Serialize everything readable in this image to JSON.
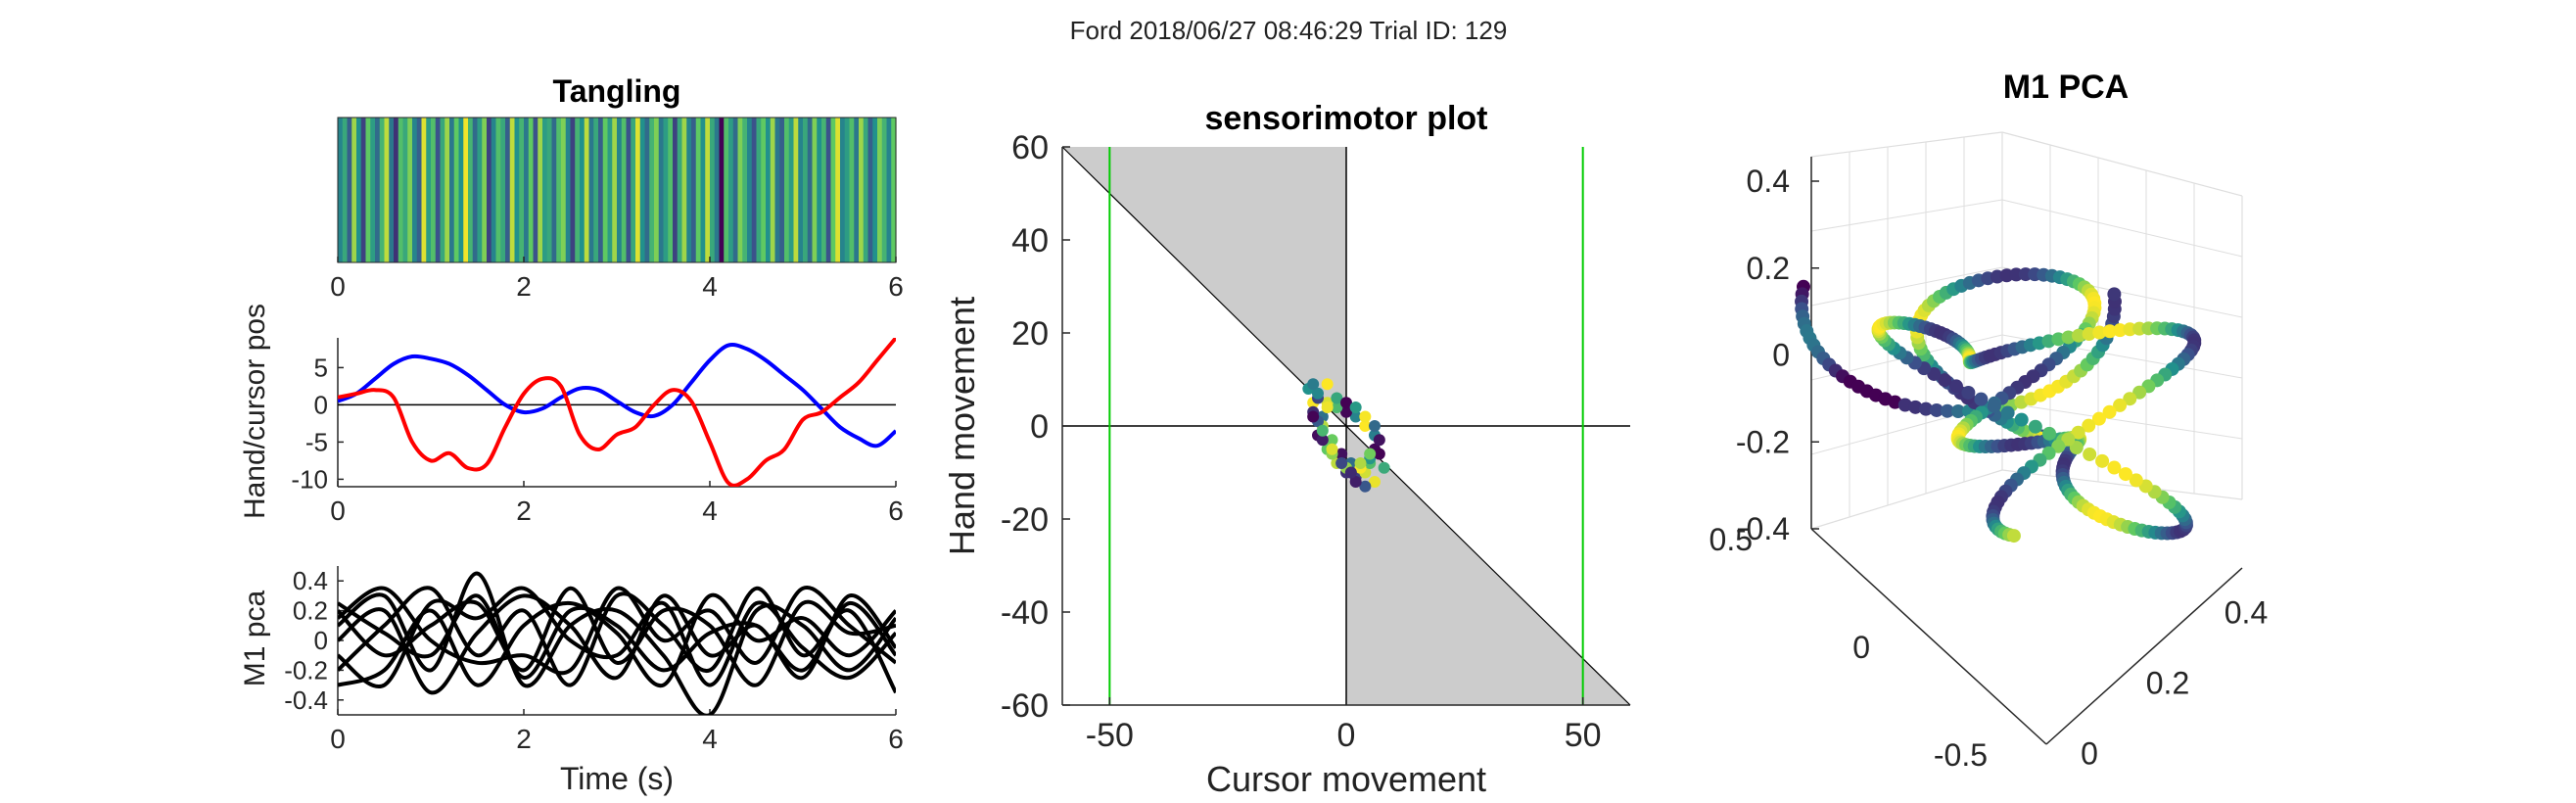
{
  "figure": {
    "suptitle": "Ford 2018/06/27 08:46:29 Trial ID: 129",
    "colors": {
      "hand": "#0000ff",
      "cursor": "#ff0000",
      "pca_lines": "#000000",
      "boundary": "#00cc00",
      "shade": "#cccccc",
      "viridis": [
        "#440154",
        "#3b528b",
        "#21918c",
        "#5ec962",
        "#fde725"
      ]
    }
  },
  "chart_data": [
    {
      "id": "tangling",
      "type": "heatmap",
      "title": "Tangling",
      "xlabel": "",
      "ylabel": "",
      "xlim": [
        0,
        6
      ],
      "xticks": [
        0,
        2,
        4,
        6
      ],
      "colormap": "viridis",
      "values": [
        0.45,
        0.6,
        0.3,
        0.85,
        0.5,
        0.2,
        0.75,
        0.55,
        0.35,
        0.65,
        0.9,
        0.4,
        0.15,
        0.7,
        0.6,
        0.8,
        0.45,
        0.3,
        0.95,
        0.55,
        0.7,
        0.25,
        0.6,
        0.85,
        0.4,
        0.75,
        0.5,
        0.98,
        0.65,
        0.35,
        0.55,
        0.8,
        0.2,
        0.45,
        0.7,
        0.6,
        0.3,
        0.9,
        0.5,
        0.65,
        0.4,
        0.75,
        0.25,
        0.85,
        0.55,
        0.6,
        0.35,
        0.7,
        0.8,
        0.45,
        0.2,
        0.65,
        0.5,
        0.9,
        0.4,
        0.6,
        0.3,
        0.75,
        0.55,
        0.85,
        0.45,
        0.7,
        0.25,
        0.6,
        0.95,
        0.5,
        0.35,
        0.65,
        0.8,
        0.4,
        0.55,
        0.7,
        0.2,
        0.6,
        0.85,
        0.45,
        0.3,
        0.75,
        0.5,
        0.9,
        0.6,
        0.4,
        0.0,
        0.7,
        0.55,
        0.35,
        0.8,
        0.65,
        0.45,
        0.25,
        0.6,
        0.75,
        0.5,
        0.85,
        0.4,
        0.3,
        0.7,
        0.55,
        0.9,
        0.45,
        0.6,
        0.35,
        0.8,
        0.5,
        0.65,
        0.25,
        0.75,
        0.95,
        0.45,
        0.55,
        0.7,
        0.4,
        0.85,
        0.6,
        0.3,
        0.5,
        0.8,
        0.65,
        0.45,
        0.75
      ]
    },
    {
      "id": "handcursor",
      "type": "line",
      "title": "",
      "xlabel": "",
      "ylabel": "Hand/cursor pos",
      "xlim": [
        0,
        6
      ],
      "ylim": [
        -11,
        9
      ],
      "xticks": [
        0,
        2,
        4,
        6
      ],
      "yticks": [
        -10,
        -5,
        0,
        5
      ],
      "series": [
        {
          "color": "blue",
          "x": [
            0,
            0.2,
            0.4,
            0.6,
            0.8,
            1.0,
            1.2,
            1.4,
            1.6,
            1.8,
            2.0,
            2.2,
            2.4,
            2.6,
            2.8,
            3.0,
            3.2,
            3.4,
            3.6,
            3.8,
            4.0,
            4.2,
            4.4,
            4.6,
            4.8,
            5.0,
            5.2,
            5.4,
            5.6,
            5.8,
            6.0
          ],
          "y": [
            0.5,
            1.5,
            3.5,
            5.5,
            6.5,
            6.2,
            5.5,
            4,
            2,
            0,
            -1,
            -0.5,
            1,
            2.2,
            2,
            0.5,
            -1,
            -1.5,
            0,
            3,
            6,
            8,
            7.5,
            6,
            4,
            2,
            -0.5,
            -3,
            -4.5,
            -5.5,
            -3.5
          ]
        },
        {
          "color": "red",
          "x": [
            0,
            0.2,
            0.4,
            0.6,
            0.8,
            1.0,
            1.2,
            1.4,
            1.6,
            1.8,
            2.0,
            2.2,
            2.4,
            2.6,
            2.8,
            3.0,
            3.2,
            3.4,
            3.6,
            3.8,
            4.0,
            4.2,
            4.4,
            4.6,
            4.8,
            5.0,
            5.2,
            5.4,
            5.6,
            5.8,
            6.0
          ],
          "y": [
            1,
            1.5,
            2,
            1,
            -5,
            -7.5,
            -6.5,
            -8.5,
            -8,
            -3,
            1.5,
            3.5,
            2.5,
            -4,
            -6,
            -4,
            -3,
            0,
            2,
            0.5,
            -5,
            -10.5,
            -10,
            -7.5,
            -6,
            -2,
            -1,
            1,
            3,
            6,
            9
          ]
        }
      ]
    },
    {
      "id": "m1pca",
      "type": "line",
      "title": "",
      "xlabel": "Time (s)",
      "ylabel": "M1 pca",
      "xlim": [
        0,
        6
      ],
      "ylim": [
        -0.5,
        0.5
      ],
      "xticks": [
        0,
        2,
        4,
        6
      ],
      "yticks": [
        -0.4,
        -0.2,
        0,
        0.2,
        0.4
      ],
      "series": [
        {
          "x": [
            0,
            0.5,
            1,
            1.5,
            2,
            2.5,
            3,
            3.5,
            4,
            4.5,
            5,
            5.5,
            6
          ],
          "y": [
            0.1,
            0.3,
            -0.2,
            0.45,
            -0.3,
            0.1,
            0.2,
            -0.1,
            -0.5,
            0.2,
            0.1,
            -0.2,
            0.15
          ]
        },
        {
          "x": [
            0,
            0.5,
            1,
            1.5,
            2,
            2.5,
            3,
            3.5,
            4,
            4.5,
            5,
            5.5,
            6
          ],
          "y": [
            -0.2,
            0.1,
            0.35,
            -0.1,
            0.2,
            -0.3,
            0.3,
            0.1,
            -0.2,
            0.35,
            -0.1,
            0.2,
            -0.35
          ]
        },
        {
          "x": [
            0,
            0.5,
            1,
            1.5,
            2,
            2.5,
            3,
            3.5,
            4,
            4.5,
            5,
            5.5,
            6
          ],
          "y": [
            0.2,
            -0.1,
            0.1,
            0.25,
            -0.2,
            0.35,
            -0.15,
            0.2,
            0.1,
            -0.3,
            0.25,
            0.05,
            0.1
          ]
        },
        {
          "x": [
            0,
            0.5,
            1,
            1.5,
            2,
            2.5,
            3,
            3.5,
            4,
            4.5,
            5,
            5.5,
            6
          ],
          "y": [
            0,
            0.2,
            -0.35,
            0.05,
            0.3,
            0.1,
            -0.25,
            0.3,
            -0.1,
            0.1,
            -0.25,
            0.3,
            -0.05
          ]
        },
        {
          "x": [
            0,
            0.5,
            1,
            1.5,
            2,
            2.5,
            3,
            3.5,
            4,
            4.5,
            5,
            5.5,
            6
          ],
          "y": [
            -0.3,
            -0.2,
            0.2,
            -0.3,
            0.1,
            0.25,
            0.05,
            -0.3,
            0.3,
            0.0,
            0.15,
            -0.1,
            0.2
          ]
        },
        {
          "x": [
            0,
            0.5,
            1,
            1.5,
            2,
            2.5,
            3,
            3.5,
            4,
            4.5,
            5,
            5.5,
            6
          ],
          "y": [
            0.15,
            0.35,
            0.0,
            -0.15,
            -0.1,
            -0.2,
            0.35,
            0.0,
            0.2,
            -0.15,
            0.35,
            0.1,
            -0.15
          ]
        },
        {
          "x": [
            0,
            0.5,
            1,
            1.5,
            2,
            2.5,
            3,
            3.5,
            4,
            4.5,
            5,
            5.5,
            6
          ],
          "y": [
            -0.1,
            -0.3,
            0.25,
            0.15,
            0.35,
            0.0,
            -0.1,
            0.25,
            -0.3,
            0.25,
            -0.05,
            -0.25,
            0.05
          ]
        },
        {
          "x": [
            0,
            0.5,
            1,
            1.5,
            2,
            2.5,
            3,
            3.5,
            4,
            4.5,
            5,
            5.5,
            6
          ],
          "y": [
            0.25,
            0.05,
            -0.1,
            0.3,
            -0.25,
            0.2,
            0.1,
            -0.2,
            0.05,
            0.1,
            -0.2,
            0.25,
            -0.1
          ]
        }
      ]
    },
    {
      "id": "sensorimotor",
      "type": "scatter",
      "title": "sensorimotor plot",
      "xlabel": "Cursor movement",
      "ylabel": "Hand movement",
      "xlim": [
        -60,
        60
      ],
      "ylim": [
        -60,
        60
      ],
      "xticks": [
        -50,
        0,
        50
      ],
      "yticks": [
        -60,
        -40,
        -20,
        0,
        20,
        40,
        60
      ],
      "boundaries": [
        -50,
        50
      ],
      "points": [
        [
          -8,
          8
        ],
        [
          -7,
          5
        ],
        [
          -5,
          2
        ],
        [
          -6,
          -2
        ],
        [
          -4,
          -5
        ],
        [
          -2,
          -8
        ],
        [
          0,
          -10
        ],
        [
          2,
          -11
        ],
        [
          4,
          -10
        ],
        [
          5,
          -8
        ],
        [
          6,
          -5
        ],
        [
          6,
          -2
        ],
        [
          4,
          0
        ],
        [
          2,
          2
        ],
        [
          0,
          3
        ],
        [
          -2,
          4
        ],
        [
          -4,
          5
        ],
        [
          -6,
          6
        ],
        [
          -7,
          3
        ],
        [
          -5,
          0
        ],
        [
          -3,
          -3
        ],
        [
          -1,
          -6
        ],
        [
          1,
          -8
        ],
        [
          3,
          -9
        ],
        [
          5,
          -7
        ],
        [
          7,
          -6
        ],
        [
          8,
          -9
        ],
        [
          6,
          -12
        ],
        [
          4,
          -13
        ],
        [
          2,
          -12
        ],
        [
          0,
          -9
        ],
        [
          -3,
          -6
        ],
        [
          -5,
          -3
        ],
        [
          -6,
          1
        ],
        [
          -4,
          4
        ],
        [
          -2,
          6
        ],
        [
          0,
          5
        ],
        [
          2,
          4
        ],
        [
          4,
          2
        ],
        [
          6,
          0
        ],
        [
          7,
          -3
        ],
        [
          5,
          -6
        ],
        [
          3,
          -8
        ],
        [
          1,
          -10
        ],
        [
          -1,
          -8
        ],
        [
          -3,
          -5
        ],
        [
          -5,
          -1
        ],
        [
          -7,
          2
        ],
        [
          -6,
          7
        ],
        [
          -4,
          9
        ],
        [
          -7,
          9
        ]
      ]
    },
    {
      "id": "pca3d",
      "type": "scatter",
      "title": "M1 PCA",
      "xlabel": "",
      "ylabel": "",
      "zlabel": "",
      "xticks": [
        0,
        0.2,
        0.4
      ],
      "yticks": [
        -0.5,
        0,
        0.5
      ],
      "zticks": [
        -0.4,
        -0.2,
        0,
        0.2,
        0.4
      ],
      "trajectory": "3D neural state trajectory colored by tangling"
    }
  ]
}
